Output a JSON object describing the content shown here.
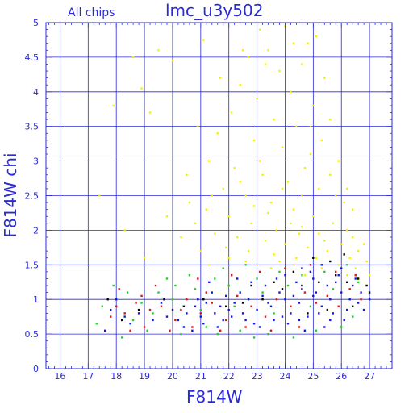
{
  "chart_data": {
    "type": "scatter",
    "title": "lmc_u3y502",
    "subtitle": "All chips",
    "xlabel": "F814W",
    "ylabel": "F814W chi",
    "xlim": [
      15.5,
      27.8
    ],
    "ylim": [
      0,
      5
    ],
    "grid": true,
    "x_ticks": [
      "16",
      "17",
      "18",
      "19",
      "20",
      "21",
      "22",
      "23",
      "24",
      "25",
      "26",
      "27"
    ],
    "y_ticks": [
      "0",
      "0.5",
      "1",
      "1.5",
      "2",
      "2.5",
      "3",
      "3.5",
      "4",
      "4.5",
      "5"
    ],
    "colors": {
      "axis": "#2a2ad8",
      "grid": "#2a2ad8",
      "yellow": "#f5f000",
      "blue": "#1414e6",
      "green": "#1fd21f",
      "red": "#e01414",
      "black": "#000000"
    },
    "series": [
      {
        "color": "yellow",
        "points": [
          [
            23.1,
            4.9
          ],
          [
            23.4,
            4.6
          ],
          [
            24.0,
            4.95
          ],
          [
            24.8,
            4.7
          ],
          [
            22.7,
            4.5
          ],
          [
            23.8,
            4.3
          ],
          [
            24.6,
            4.4
          ],
          [
            25.1,
            4.8
          ],
          [
            20.0,
            4.45
          ],
          [
            21.1,
            4.75
          ],
          [
            19.5,
            4.6
          ],
          [
            18.6,
            4.5
          ],
          [
            17.9,
            3.8
          ],
          [
            18.9,
            4.05
          ],
          [
            19.2,
            3.7
          ],
          [
            22.4,
            4.1
          ],
          [
            23.0,
            3.9
          ],
          [
            24.2,
            4.0
          ],
          [
            25.0,
            3.8
          ],
          [
            25.6,
            3.6
          ],
          [
            22.1,
            3.7
          ],
          [
            23.6,
            3.6
          ],
          [
            24.4,
            3.5
          ],
          [
            21.6,
            3.4
          ],
          [
            22.9,
            3.3
          ],
          [
            23.9,
            3.2
          ],
          [
            24.9,
            3.1
          ],
          [
            25.3,
            3.3
          ],
          [
            21.3,
            3.0
          ],
          [
            22.2,
            2.9
          ],
          [
            23.2,
            2.8
          ],
          [
            24.1,
            2.7
          ],
          [
            24.7,
            2.9
          ],
          [
            25.2,
            2.6
          ],
          [
            25.8,
            2.5
          ],
          [
            20.5,
            2.8
          ],
          [
            21.8,
            2.6
          ],
          [
            22.6,
            2.5
          ],
          [
            23.5,
            2.4
          ],
          [
            24.3,
            2.3
          ],
          [
            25.0,
            2.2
          ],
          [
            25.7,
            2.1
          ],
          [
            26.2,
            2.0
          ],
          [
            21.2,
            2.3
          ],
          [
            22.0,
            2.2
          ],
          [
            22.8,
            2.1
          ],
          [
            23.7,
            2.0
          ],
          [
            24.5,
            1.95
          ],
          [
            25.4,
            1.85
          ],
          [
            26.0,
            1.8
          ],
          [
            26.6,
            1.7
          ],
          [
            20.8,
            2.1
          ],
          [
            21.5,
            1.95
          ],
          [
            22.3,
            1.9
          ],
          [
            23.3,
            1.85
          ],
          [
            24.0,
            1.8
          ],
          [
            24.8,
            1.75
          ],
          [
            25.5,
            1.7
          ],
          [
            26.3,
            1.6
          ],
          [
            26.9,
            1.55
          ],
          [
            21.9,
            1.75
          ],
          [
            22.7,
            1.7
          ],
          [
            23.6,
            1.65
          ],
          [
            24.4,
            1.6
          ],
          [
            25.1,
            1.6
          ],
          [
            25.9,
            1.5
          ],
          [
            26.5,
            1.45
          ],
          [
            27.0,
            1.35
          ],
          [
            20.3,
            1.9
          ],
          [
            19.8,
            2.2
          ],
          [
            20.9,
            3.5
          ],
          [
            21.7,
            4.2
          ],
          [
            22.5,
            4.6
          ],
          [
            23.3,
            4.4
          ],
          [
            24.3,
            4.7
          ],
          [
            25.4,
            4.2
          ],
          [
            24.9,
            3.5
          ],
          [
            23.1,
            3.0
          ],
          [
            22.4,
            2.7
          ],
          [
            21.4,
            2.5
          ],
          [
            20.6,
            2.4
          ],
          [
            24.6,
            2.5
          ],
          [
            25.6,
            2.8
          ],
          [
            26.1,
            2.4
          ],
          [
            23.9,
            2.6
          ],
          [
            24.2,
            2.1
          ],
          [
            24.6,
            2.05
          ],
          [
            25.2,
            1.95
          ],
          [
            23.4,
            2.25
          ],
          [
            22.9,
            2.35
          ],
          [
            26.4,
            1.9
          ],
          [
            26.8,
            1.8
          ],
          [
            17.4,
            2.5
          ],
          [
            18.3,
            2.0
          ],
          [
            19.0,
            1.6
          ],
          [
            26.2,
            2.6
          ],
          [
            25.9,
            3.0
          ],
          [
            26.4,
            2.3
          ],
          [
            21.0,
            1.7
          ],
          [
            23.8,
            1.55
          ],
          [
            24.3,
            1.5
          ],
          [
            25.3,
            1.45
          ],
          [
            25.8,
            1.4
          ],
          [
            26.6,
            1.3
          ],
          [
            26.9,
            1.2
          ],
          [
            22.0,
            1.6
          ],
          [
            22.6,
            1.55
          ],
          [
            21.3,
            1.5
          ],
          [
            23.0,
            1.5
          ],
          [
            24.9,
            1.4
          ],
          [
            26.2,
            1.35
          ],
          [
            23.5,
            1.45
          ],
          [
            24.7,
            1.35
          ]
        ]
      },
      {
        "color": "blue",
        "points": [
          [
            24.0,
            1.0
          ],
          [
            24.5,
            0.95
          ],
          [
            25.0,
            1.05
          ],
          [
            25.3,
            0.9
          ],
          [
            25.6,
            1.0
          ],
          [
            23.5,
            0.9
          ],
          [
            23.0,
            0.85
          ],
          [
            22.5,
            0.8
          ],
          [
            22.0,
            0.85
          ],
          [
            21.5,
            0.8
          ],
          [
            21.0,
            0.75
          ],
          [
            20.5,
            0.8
          ],
          [
            26.0,
            1.1
          ],
          [
            26.3,
            1.0
          ],
          [
            26.6,
            0.95
          ],
          [
            24.2,
            0.8
          ],
          [
            24.8,
            0.75
          ],
          [
            25.2,
            0.8
          ],
          [
            23.8,
            1.1
          ],
          [
            24.6,
            1.15
          ],
          [
            25.5,
            1.2
          ],
          [
            23.2,
            1.05
          ],
          [
            22.7,
            1.0
          ],
          [
            22.2,
            0.95
          ],
          [
            21.7,
            0.9
          ],
          [
            21.2,
            0.95
          ],
          [
            20.8,
            0.9
          ],
          [
            20.2,
            0.7
          ],
          [
            19.8,
            0.75
          ],
          [
            19.3,
            0.7
          ],
          [
            18.8,
            0.8
          ],
          [
            18.3,
            0.75
          ],
          [
            17.8,
            0.85
          ],
          [
            24.4,
            1.25
          ],
          [
            25.0,
            1.3
          ],
          [
            25.8,
            1.25
          ],
          [
            26.4,
            1.2
          ],
          [
            24.1,
            0.65
          ],
          [
            23.6,
            0.7
          ],
          [
            22.9,
            0.65
          ],
          [
            25.4,
            0.6
          ],
          [
            26.1,
            0.7
          ],
          [
            26.8,
            0.85
          ],
          [
            27.0,
            1.0
          ],
          [
            23.3,
            1.2
          ],
          [
            22.4,
            1.1
          ],
          [
            21.9,
            1.05
          ],
          [
            21.4,
            1.1
          ],
          [
            20.9,
            1.0
          ],
          [
            25.7,
            0.8
          ],
          [
            24.7,
            0.55
          ],
          [
            23.9,
            0.75
          ],
          [
            22.6,
            0.7
          ],
          [
            21.8,
            0.7
          ],
          [
            21.1,
            0.65
          ],
          [
            20.4,
            0.6
          ],
          [
            25.9,
            1.35
          ],
          [
            24.9,
            1.4
          ],
          [
            23.7,
            1.3
          ],
          [
            22.8,
            1.25
          ],
          [
            26.2,
            0.85
          ],
          [
            26.5,
            1.3
          ],
          [
            20.0,
            0.85
          ],
          [
            19.6,
            0.95
          ],
          [
            18.5,
            0.65
          ],
          [
            17.6,
            0.55
          ],
          [
            18.0,
            1.0
          ],
          [
            24.3,
            1.05
          ],
          [
            25.1,
            1.1
          ],
          [
            23.4,
            0.95
          ],
          [
            22.1,
            0.75
          ],
          [
            21.6,
            0.6
          ],
          [
            20.7,
            0.55
          ],
          [
            25.6,
            0.7
          ],
          [
            24.5,
            0.7
          ],
          [
            26.7,
            1.1
          ],
          [
            23.1,
            0.6
          ],
          [
            24.0,
            1.35
          ],
          [
            24.6,
            1.45
          ],
          [
            25.3,
            1.5
          ],
          [
            26.0,
            1.45
          ],
          [
            22.3,
            1.3
          ],
          [
            21.3,
            1.25
          ]
        ]
      },
      {
        "color": "green",
        "points": [
          [
            22.0,
            1.2
          ],
          [
            21.5,
            1.3
          ],
          [
            20.8,
            1.15
          ],
          [
            20.0,
            1.0
          ],
          [
            19.5,
            1.1
          ],
          [
            18.9,
            0.95
          ],
          [
            18.4,
            1.1
          ],
          [
            17.9,
            1.2
          ],
          [
            17.5,
            0.9
          ],
          [
            23.0,
            1.3
          ],
          [
            23.8,
            1.4
          ],
          [
            24.6,
            1.35
          ],
          [
            25.4,
            1.4
          ],
          [
            26.2,
            1.5
          ],
          [
            21.2,
            0.6
          ],
          [
            22.4,
            0.55
          ],
          [
            23.4,
            0.5
          ],
          [
            24.3,
            0.45
          ],
          [
            20.3,
            0.5
          ],
          [
            19.1,
            0.55
          ],
          [
            18.2,
            0.45
          ],
          [
            25.1,
            0.55
          ],
          [
            26.0,
            0.6
          ],
          [
            21.8,
            1.45
          ],
          [
            22.6,
            1.5
          ],
          [
            20.6,
            1.35
          ],
          [
            19.8,
            1.3
          ],
          [
            26.6,
            1.25
          ],
          [
            24.9,
            0.9
          ],
          [
            23.6,
            0.8
          ],
          [
            22.2,
            0.9
          ],
          [
            21.0,
            0.85
          ],
          [
            25.7,
            1.15
          ],
          [
            19.3,
            0.8
          ],
          [
            18.6,
            0.7
          ],
          [
            17.3,
            0.65
          ],
          [
            20.1,
            1.2
          ],
          [
            23.2,
            1.1
          ],
          [
            24.1,
            1.2
          ],
          [
            26.4,
            0.75
          ],
          [
            21.6,
            0.5
          ],
          [
            22.9,
            0.45
          ]
        ]
      },
      {
        "color": "red",
        "points": [
          [
            18.0,
            0.9
          ],
          [
            18.3,
            0.8
          ],
          [
            18.7,
            0.95
          ],
          [
            19.2,
            0.85
          ],
          [
            19.6,
            0.9
          ],
          [
            20.1,
            0.7
          ],
          [
            20.5,
            1.0
          ],
          [
            21.0,
            0.8
          ],
          [
            21.4,
            0.95
          ],
          [
            21.9,
            0.7
          ],
          [
            22.3,
            1.05
          ],
          [
            22.8,
            0.9
          ],
          [
            23.3,
            0.75
          ],
          [
            23.7,
            1.0
          ],
          [
            24.2,
            0.9
          ],
          [
            24.7,
            1.1
          ],
          [
            25.1,
            0.95
          ],
          [
            25.5,
            1.05
          ],
          [
            25.9,
            0.9
          ],
          [
            26.3,
            1.15
          ],
          [
            26.7,
            1.0
          ],
          [
            18.5,
            0.55
          ],
          [
            19.0,
            0.6
          ],
          [
            19.9,
            0.55
          ],
          [
            20.7,
            0.6
          ],
          [
            21.7,
            0.55
          ],
          [
            22.6,
            0.6
          ],
          [
            23.5,
            0.55
          ],
          [
            24.5,
            0.6
          ],
          [
            18.1,
            1.15
          ],
          [
            19.4,
            1.2
          ],
          [
            20.9,
            1.3
          ],
          [
            22.1,
            1.35
          ],
          [
            23.1,
            1.4
          ],
          [
            24.0,
            1.45
          ],
          [
            24.9,
            1.5
          ],
          [
            25.8,
            1.4
          ],
          [
            26.5,
            1.35
          ],
          [
            17.8,
            0.75
          ],
          [
            18.9,
            1.05
          ],
          [
            20.3,
            0.85
          ],
          [
            21.2,
            1.1
          ]
        ]
      },
      {
        "color": "black",
        "points": [
          [
            26.9,
            1.2
          ],
          [
            27.0,
            1.1
          ],
          [
            26.6,
            1.3
          ],
          [
            26.2,
            1.25
          ],
          [
            25.8,
            1.35
          ],
          [
            25.2,
            1.25
          ],
          [
            24.6,
            1.2
          ],
          [
            23.9,
            1.15
          ],
          [
            23.2,
            1.0
          ],
          [
            22.5,
            0.95
          ],
          [
            21.9,
            0.9
          ],
          [
            21.1,
            1.0
          ],
          [
            20.4,
            0.9
          ],
          [
            19.7,
            1.0
          ],
          [
            18.8,
            0.85
          ],
          [
            18.2,
            0.7
          ],
          [
            17.7,
            1.0
          ],
          [
            25.5,
            0.85
          ],
          [
            24.8,
            0.8
          ],
          [
            26.4,
            0.9
          ],
          [
            23.6,
            1.25
          ],
          [
            22.8,
            1.2
          ],
          [
            24.3,
            1.4
          ],
          [
            25.0,
            1.6
          ],
          [
            25.6,
            1.55
          ],
          [
            26.1,
            1.65
          ]
        ]
      }
    ]
  }
}
